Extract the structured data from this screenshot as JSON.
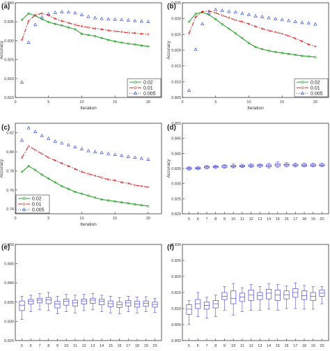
{
  "chart_data": [
    {
      "panel": "(a)",
      "type": "line",
      "xlabel": "Iteration",
      "ylabel": "Accuracy",
      "xlim": [
        0,
        22
      ],
      "ylim": [
        0.815,
        0.84
      ],
      "xticks": [
        0,
        5,
        10,
        15,
        20
      ],
      "yticks": [
        0.815,
        0.82,
        0.825,
        0.83,
        0.835,
        0.84
      ],
      "tick_decimals": 3,
      "legend": "bottom-right",
      "series": [
        {
          "name": "0.02",
          "color": "#2ca02c",
          "dash": "",
          "marker": "square",
          "x": [
            1,
            2,
            3,
            4,
            5,
            6,
            7,
            8,
            9,
            10,
            11,
            12,
            13,
            14,
            15,
            16,
            17,
            18,
            19,
            20
          ],
          "y": [
            0.8355,
            0.8372,
            0.8366,
            0.8357,
            0.8349,
            0.8344,
            0.834,
            0.8335,
            0.833,
            0.8318,
            0.8315,
            0.8312,
            0.8307,
            0.8302,
            0.8298,
            0.8295,
            0.8292,
            0.829,
            0.8287,
            0.8285
          ]
        },
        {
          "name": "0.01",
          "color": "#d62728",
          "dash": "6,2,1.5,2",
          "marker": "circle",
          "x": [
            1,
            2,
            3,
            4,
            5,
            6,
            7,
            8,
            9,
            10,
            11,
            12,
            13,
            14,
            15,
            16,
            17,
            18,
            19,
            20
          ],
          "y": [
            0.8302,
            0.8352,
            0.8368,
            0.8372,
            0.8367,
            0.8358,
            0.8352,
            0.8347,
            0.8342,
            0.8338,
            0.8335,
            0.8332,
            0.833,
            0.8327,
            0.8325,
            0.8323,
            0.8321,
            0.832,
            0.8318,
            0.8317
          ]
        },
        {
          "name": "0.005",
          "color": "#1f3fd6",
          "dash": "1,2",
          "marker": "triangle",
          "x": [
            1,
            2,
            3,
            4,
            5,
            6,
            7,
            8,
            9,
            10,
            11,
            12,
            13,
            14,
            15,
            16,
            17,
            18,
            19,
            20
          ],
          "y": [
            0.819,
            0.8295,
            0.8342,
            0.8362,
            0.837,
            0.8374,
            0.8376,
            0.8375,
            0.8373,
            0.8368,
            0.8363,
            0.836,
            0.8358,
            0.8357,
            0.8356,
            0.8355,
            0.8354,
            0.8352,
            0.8351,
            0.835
          ]
        }
      ]
    },
    {
      "panel": "(b)",
      "type": "line",
      "xlabel": "Iteration",
      "ylabel": "Accuracy",
      "xlim": [
        0,
        22
      ],
      "ylim": [
        0.805,
        0.835
      ],
      "xticks": [
        0,
        5,
        10,
        15,
        20
      ],
      "yticks": [
        0.805,
        0.81,
        0.815,
        0.82,
        0.825,
        0.83,
        0.835
      ],
      "tick_decimals": 3,
      "legend": "bottom-right",
      "series": [
        {
          "name": "0.02",
          "color": "#2ca02c",
          "dash": "",
          "marker": "square",
          "x": [
            1,
            2,
            3,
            4,
            5,
            6,
            7,
            8,
            9,
            10,
            11,
            12,
            13,
            14,
            15,
            16,
            17,
            18,
            19,
            20
          ],
          "y": [
            0.829,
            0.8315,
            0.832,
            0.8312,
            0.8298,
            0.8282,
            0.8268,
            0.8253,
            0.8238,
            0.8222,
            0.821,
            0.8203,
            0.8198,
            0.8194,
            0.8191,
            0.8188,
            0.8185,
            0.8182,
            0.818,
            0.8178
          ]
        },
        {
          "name": "0.01",
          "color": "#d62728",
          "dash": "6,2,1.5,2",
          "marker": "circle",
          "x": [
            1,
            2,
            3,
            4,
            5,
            6,
            7,
            8,
            9,
            10,
            11,
            12,
            13,
            14,
            15,
            16,
            17,
            18,
            19,
            20
          ],
          "y": [
            0.8253,
            0.8305,
            0.8322,
            0.8324,
            0.8318,
            0.831,
            0.8303,
            0.8295,
            0.829,
            0.8283,
            0.8275,
            0.8268,
            0.8262,
            0.8257,
            0.8252,
            0.8245,
            0.8237,
            0.8228,
            0.8218,
            0.8212
          ]
        },
        {
          "name": "0.005",
          "color": "#1f3fd6",
          "dash": "1,2",
          "marker": "triangle",
          "x": [
            1,
            2,
            3,
            4,
            5,
            6,
            7,
            8,
            9,
            10,
            11,
            12,
            13,
            14,
            15,
            16,
            17,
            18,
            19,
            20
          ],
          "y": [
            0.8072,
            0.8202,
            0.8283,
            0.8318,
            0.8328,
            0.8325,
            0.8322,
            0.832,
            0.8316,
            0.8312,
            0.8308,
            0.8305,
            0.8302,
            0.8299,
            0.8296,
            0.8293,
            0.829,
            0.8287,
            0.8285,
            0.8282
          ]
        }
      ]
    },
    {
      "panel": "(c)",
      "type": "line",
      "xlabel": "Iteration",
      "ylabel": "Accuracy",
      "xlim": [
        0,
        22
      ],
      "ylim": [
        0.735,
        0.83
      ],
      "xticks": [
        0,
        5,
        10,
        15,
        20
      ],
      "yticks": [
        0.74,
        0.76,
        0.78,
        0.8,
        0.82
      ],
      "tick_decimals": 2,
      "legend": "bottom-left",
      "series": [
        {
          "name": "0.02",
          "color": "#2ca02c",
          "dash": "",
          "marker": "square",
          "x": [
            1,
            2,
            3,
            4,
            5,
            6,
            7,
            8,
            9,
            10,
            11,
            12,
            13,
            14,
            15,
            16,
            17,
            18,
            19,
            20
          ],
          "y": [
            0.779,
            0.785,
            0.781,
            0.776,
            0.772,
            0.768,
            0.764,
            0.761,
            0.758,
            0.756,
            0.754,
            0.752,
            0.75,
            0.749,
            0.748,
            0.747,
            0.746,
            0.745,
            0.744,
            0.743
          ]
        },
        {
          "name": "0.01",
          "color": "#d62728",
          "dash": "6,2,1.5,2",
          "marker": "circle",
          "x": [
            1,
            2,
            3,
            4,
            5,
            6,
            7,
            8,
            9,
            10,
            11,
            12,
            13,
            14,
            15,
            16,
            17,
            18,
            19,
            20
          ],
          "y": [
            0.794,
            0.806,
            0.802,
            0.798,
            0.794,
            0.791,
            0.788,
            0.785,
            0.782,
            0.779,
            0.777,
            0.775,
            0.773,
            0.771,
            0.77,
            0.768,
            0.767,
            0.765,
            0.764,
            0.763
          ]
        },
        {
          "name": "0.005",
          "color": "#1f3fd6",
          "dash": "1,2",
          "marker": "triangle",
          "x": [
            1,
            2,
            3,
            4,
            5,
            6,
            7,
            8,
            9,
            10,
            11,
            12,
            13,
            14,
            15,
            16,
            17,
            18,
            19,
            20
          ],
          "y": [
            0.812,
            0.825,
            0.821,
            0.817,
            0.814,
            0.811,
            0.809,
            0.807,
            0.805,
            0.803,
            0.801,
            0.8,
            0.799,
            0.798,
            0.797,
            0.796,
            0.795,
            0.794,
            0.793,
            0.792
          ]
        }
      ]
    },
    {
      "panel": "(d)",
      "type": "box",
      "xlabel": "",
      "ylabel": "Accuracy",
      "ylim": [
        0.82,
        0.85
      ],
      "yticks": [
        0.82,
        0.825,
        0.83,
        0.835,
        0.84,
        0.845,
        0.85
      ],
      "tick_decimals": 3,
      "categories": [
        "5",
        "6",
        "7",
        "8",
        "9",
        "10",
        "11",
        "12",
        "13",
        "14",
        "15",
        "16",
        "17",
        "18",
        "19",
        "20"
      ],
      "boxes": [
        {
          "min": 0.8345,
          "q1": 0.8348,
          "median": 0.835,
          "q3": 0.8353,
          "max": 0.8356
        },
        {
          "min": 0.8346,
          "q1": 0.8349,
          "median": 0.8351,
          "q3": 0.8354,
          "max": 0.8357
        },
        {
          "min": 0.8349,
          "q1": 0.8352,
          "median": 0.8355,
          "q3": 0.8357,
          "max": 0.836
        },
        {
          "min": 0.835,
          "q1": 0.8353,
          "median": 0.8356,
          "q3": 0.8358,
          "max": 0.8361
        },
        {
          "min": 0.8351,
          "q1": 0.8354,
          "median": 0.8357,
          "q3": 0.836,
          "max": 0.8363
        },
        {
          "min": 0.8352,
          "q1": 0.8355,
          "median": 0.8357,
          "q3": 0.836,
          "max": 0.8365
        },
        {
          "min": 0.8353,
          "q1": 0.8356,
          "median": 0.8358,
          "q3": 0.8361,
          "max": 0.8364
        },
        {
          "min": 0.8353,
          "q1": 0.8357,
          "median": 0.8359,
          "q3": 0.8362,
          "max": 0.8366
        },
        {
          "min": 0.8354,
          "q1": 0.8357,
          "median": 0.836,
          "q3": 0.8363,
          "max": 0.8366
        },
        {
          "min": 0.8352,
          "q1": 0.8356,
          "median": 0.8359,
          "q3": 0.8362,
          "max": 0.8367
        },
        {
          "min": 0.8354,
          "q1": 0.8358,
          "median": 0.8362,
          "q3": 0.8366,
          "max": 0.8372
        },
        {
          "min": 0.8355,
          "q1": 0.8359,
          "median": 0.8362,
          "q3": 0.8365,
          "max": 0.8369
        },
        {
          "min": 0.8355,
          "q1": 0.8359,
          "median": 0.8361,
          "q3": 0.8364,
          "max": 0.8368
        },
        {
          "min": 0.8355,
          "q1": 0.8358,
          "median": 0.8361,
          "q3": 0.8364,
          "max": 0.8368
        },
        {
          "min": 0.8355,
          "q1": 0.8358,
          "median": 0.8361,
          "q3": 0.8364,
          "max": 0.8367
        },
        {
          "min": 0.8356,
          "q1": 0.8359,
          "median": 0.8361,
          "q3": 0.8364,
          "max": 0.8368
        }
      ]
    },
    {
      "panel": "(e)",
      "type": "box",
      "xlabel": "",
      "ylabel": "",
      "ylim": [
        0.825,
        0.85
      ],
      "yticks": [
        0.825,
        0.83,
        0.835,
        0.84,
        0.845,
        0.85
      ],
      "tick_decimals": 3,
      "categories": [
        "5",
        "6",
        "7",
        "8",
        "9",
        "10",
        "11",
        "12",
        "13",
        "14",
        "15",
        "16",
        "17",
        "18",
        "19",
        "20"
      ],
      "boxes": [
        {
          "min": 0.8305,
          "q1": 0.8328,
          "median": 0.8342,
          "q3": 0.8353,
          "max": 0.8365
        },
        {
          "min": 0.8325,
          "q1": 0.8345,
          "median": 0.8352,
          "q3": 0.8357,
          "max": 0.8368
        },
        {
          "min": 0.833,
          "q1": 0.8348,
          "median": 0.8355,
          "q3": 0.836,
          "max": 0.8372
        },
        {
          "min": 0.8328,
          "q1": 0.8346,
          "median": 0.8356,
          "q3": 0.8362,
          "max": 0.8375
        },
        {
          "min": 0.832,
          "q1": 0.8335,
          "median": 0.8345,
          "q3": 0.8352,
          "max": 0.8365
        },
        {
          "min": 0.8325,
          "q1": 0.8342,
          "median": 0.8352,
          "q3": 0.8358,
          "max": 0.837
        },
        {
          "min": 0.8322,
          "q1": 0.834,
          "median": 0.8348,
          "q3": 0.8355,
          "max": 0.8368
        },
        {
          "min": 0.8328,
          "q1": 0.8345,
          "median": 0.8353,
          "q3": 0.8358,
          "max": 0.837
        },
        {
          "min": 0.833,
          "q1": 0.8347,
          "median": 0.8355,
          "q3": 0.836,
          "max": 0.8372
        },
        {
          "min": 0.8325,
          "q1": 0.8343,
          "median": 0.8352,
          "q3": 0.8358,
          "max": 0.8368
        },
        {
          "min": 0.8322,
          "q1": 0.8338,
          "median": 0.8346,
          "q3": 0.8353,
          "max": 0.8365
        },
        {
          "min": 0.832,
          "q1": 0.8336,
          "median": 0.8343,
          "q3": 0.835,
          "max": 0.8362
        },
        {
          "min": 0.8325,
          "q1": 0.834,
          "median": 0.8348,
          "q3": 0.8354,
          "max": 0.8365
        },
        {
          "min": 0.8322,
          "q1": 0.8337,
          "median": 0.8345,
          "q3": 0.8352,
          "max": 0.8363
        },
        {
          "min": 0.8325,
          "q1": 0.8339,
          "median": 0.8347,
          "q3": 0.8353,
          "max": 0.8364
        },
        {
          "min": 0.8323,
          "q1": 0.8337,
          "median": 0.8344,
          "q3": 0.835,
          "max": 0.836
        }
      ]
    },
    {
      "panel": "(f)",
      "type": "box",
      "xlabel": "",
      "ylabel": "",
      "ylim": [
        0.8,
        0.83
      ],
      "yticks": [
        0.8,
        0.805,
        0.81,
        0.815,
        0.82,
        0.825,
        0.83
      ],
      "tick_decimals": 3,
      "categories": [
        "5",
        "6",
        "7",
        "8",
        "9",
        "10",
        "11",
        "12",
        "13",
        "14",
        "15",
        "16",
        "17",
        "18",
        "19",
        "20"
      ],
      "boxes": [
        {
          "min": 0.805,
          "q1": 0.8082,
          "median": 0.8098,
          "q3": 0.8112,
          "max": 0.8125
        },
        {
          "min": 0.8075,
          "q1": 0.81,
          "median": 0.8115,
          "q3": 0.8128,
          "max": 0.815
        },
        {
          "min": 0.807,
          "q1": 0.8098,
          "median": 0.811,
          "q3": 0.812,
          "max": 0.8135
        },
        {
          "min": 0.8075,
          "q1": 0.8102,
          "median": 0.8115,
          "q3": 0.8125,
          "max": 0.8142
        },
        {
          "min": 0.8095,
          "q1": 0.8128,
          "median": 0.8138,
          "q3": 0.815,
          "max": 0.8168
        },
        {
          "min": 0.808,
          "q1": 0.8115,
          "median": 0.8132,
          "q3": 0.8155,
          "max": 0.8178
        },
        {
          "min": 0.809,
          "q1": 0.8122,
          "median": 0.8136,
          "q3": 0.8148,
          "max": 0.8165
        },
        {
          "min": 0.8095,
          "q1": 0.8125,
          "median": 0.8142,
          "q3": 0.8158,
          "max": 0.8175
        },
        {
          "min": 0.8095,
          "q1": 0.8128,
          "median": 0.814,
          "q3": 0.815,
          "max": 0.8168
        },
        {
          "min": 0.8098,
          "q1": 0.813,
          "median": 0.8148,
          "q3": 0.816,
          "max": 0.8178
        },
        {
          "min": 0.8095,
          "q1": 0.8125,
          "median": 0.8142,
          "q3": 0.8158,
          "max": 0.8175
        },
        {
          "min": 0.81,
          "q1": 0.813,
          "median": 0.8143,
          "q3": 0.8155,
          "max": 0.817
        },
        {
          "min": 0.81,
          "q1": 0.8135,
          "median": 0.815,
          "q3": 0.8162,
          "max": 0.818
        },
        {
          "min": 0.8098,
          "q1": 0.8128,
          "median": 0.814,
          "q3": 0.8155,
          "max": 0.8172
        },
        {
          "min": 0.8098,
          "q1": 0.8125,
          "median": 0.8138,
          "q3": 0.815,
          "max": 0.8168
        },
        {
          "min": 0.8115,
          "q1": 0.8138,
          "median": 0.8148,
          "q3": 0.8158,
          "max": 0.8168
        }
      ]
    }
  ]
}
